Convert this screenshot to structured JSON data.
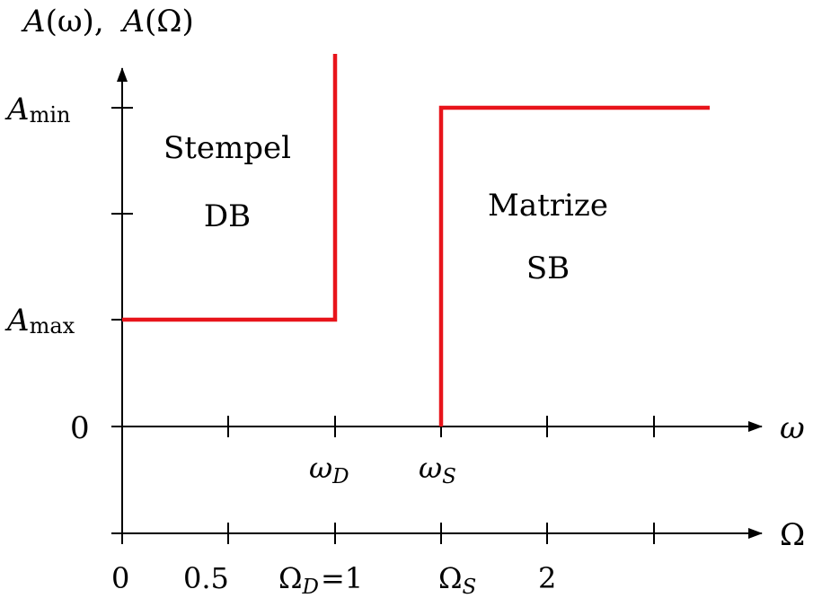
{
  "y_axis_label": {
    "a1": "A",
    "a1_arg": "(ω),",
    "a2": "A",
    "a2_arg": "(Ω)"
  },
  "y_ticks": {
    "amin_base": "A",
    "amin_sub": "min",
    "amax_base": "A",
    "amax_sub": "max",
    "zero": "0"
  },
  "omega_axis": {
    "label": "ω",
    "omega_d_base": "ω",
    "omega_d_sub": "D",
    "omega_s_base": "ω",
    "omega_s_sub": "S"
  },
  "Omega_axis": {
    "label": "Ω",
    "tick_0": "0",
    "tick_05": "0.5",
    "omega_d_base": "Ω",
    "omega_d_sub": "D",
    "omega_d_eq": "=1",
    "omega_s_base": "Ω",
    "omega_s_sub": "S",
    "tick_2": "2"
  },
  "regions": {
    "stempel_line1": "Stempel",
    "stempel_line2": "DB",
    "matrize_line1": "Matrize",
    "matrize_line2": "SB"
  },
  "colors": {
    "boundary": "#e8141b",
    "axis": "#000000"
  }
}
